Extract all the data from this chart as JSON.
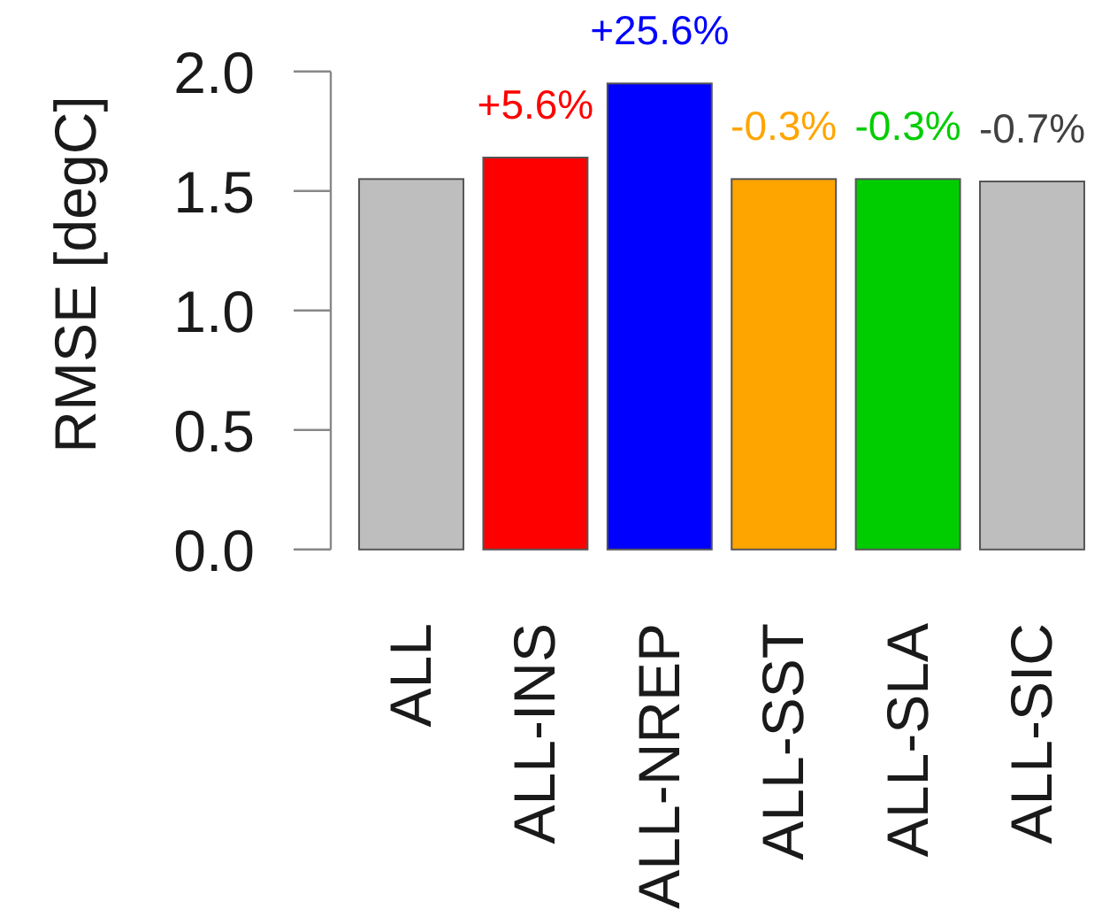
{
  "chart_data": {
    "type": "bar",
    "ylabel": "RMSE [degC]",
    "categories": [
      "ALL",
      "ALL-INS",
      "ALL-NREP",
      "ALL-SST",
      "ALL-SLA",
      "ALL-SIC"
    ],
    "values": [
      1.55,
      1.64,
      1.95,
      1.55,
      1.55,
      1.54
    ],
    "colors": [
      "#bebebe",
      "#ff0000",
      "#0000ff",
      "#ffa500",
      "#00cd00",
      "#bebebe"
    ],
    "annotations": [
      {
        "text": "+5.6%",
        "x": "ALL-INS",
        "y": 1.64
      },
      {
        "text": "+25.6%",
        "x": "ALL-NREP",
        "y": 1.95
      },
      {
        "text": "-0.3%",
        "x": "ALL-SST",
        "y": 1.55
      },
      {
        "text": "-0.3%",
        "x": "ALL-SLA",
        "y": 1.55
      },
      {
        "text": "-0.7%",
        "x": "ALL-SIC",
        "y": 1.54
      }
    ],
    "ylim": [
      0,
      2
    ],
    "yticks": [
      {
        "value": 0,
        "label": "0.0"
      },
      {
        "value": 0.5,
        "label": "0.5"
      },
      {
        "value": 1,
        "label": "1.0"
      },
      {
        "value": 1.5,
        "label": "1.5"
      },
      {
        "value": 2,
        "label": "2.0"
      }
    ]
  }
}
